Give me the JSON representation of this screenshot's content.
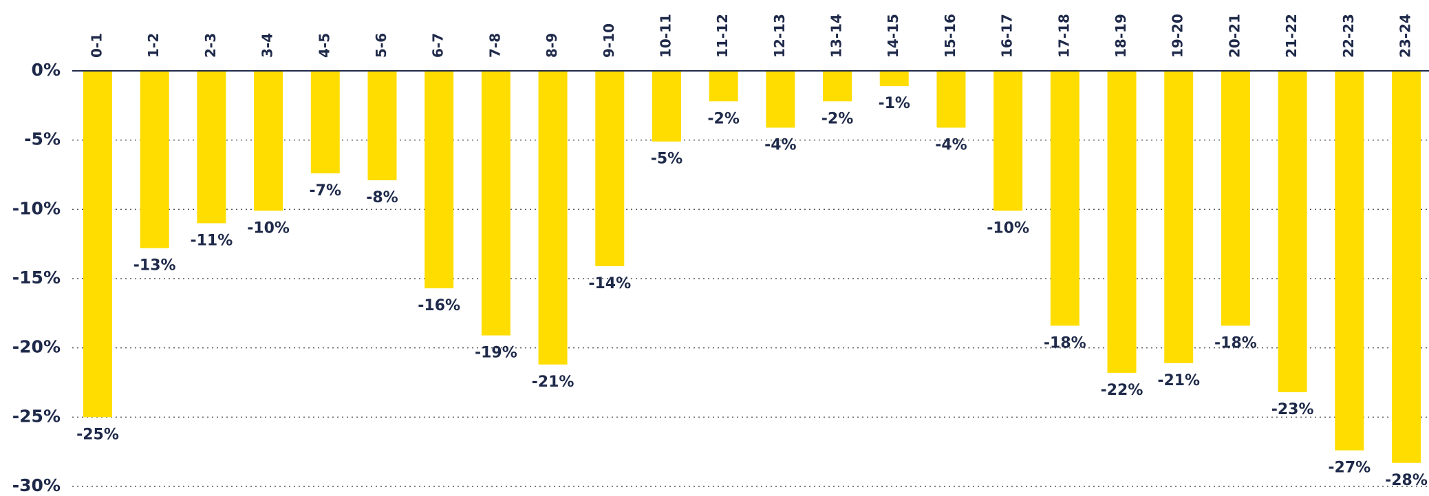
{
  "chart_data": {
    "type": "bar",
    "categories": [
      "0-1",
      "1-2",
      "2-3",
      "3-4",
      "4-5",
      "5-6",
      "6-7",
      "7-8",
      "8-9",
      "9-10",
      "10-11",
      "11-12",
      "12-13",
      "13-14",
      "14-15",
      "15-16",
      "16-17",
      "17-18",
      "18-19",
      "19-20",
      "20-21",
      "21-22",
      "22-23",
      "23-24"
    ],
    "values": [
      -25,
      -12.8,
      -11,
      -10.1,
      -7.4,
      -7.9,
      -15.7,
      -19.1,
      -21.2,
      -14.1,
      -5.1,
      -2.2,
      -4.1,
      -2.2,
      -1.1,
      -4.1,
      -10.1,
      -18.4,
      -21.8,
      -21.1,
      -18.4,
      -23.2,
      -27.4,
      -28.3
    ],
    "value_labels": [
      "-25%",
      "-13%",
      "-11%",
      "-10%",
      "-7%",
      "-8%",
      "-16%",
      "-19%",
      "-21%",
      "-14%",
      "-5%",
      "-2%",
      "-4%",
      "-2%",
      "-1%",
      "-4%",
      "-10%",
      "-18%",
      "-22%",
      "-21%",
      "-18%",
      "-23%",
      "-27%",
      "-28%"
    ],
    "color": "#ffdd00",
    "ylim": [
      -30,
      0
    ],
    "yticks": [
      {
        "value": 0,
        "label": "0%"
      },
      {
        "value": -5,
        "label": "-5%"
      },
      {
        "value": -10,
        "label": "-10%"
      },
      {
        "value": -15,
        "label": "-15%"
      },
      {
        "value": -20,
        "label": "-20%"
      },
      {
        "value": -25,
        "label": "-25%"
      },
      {
        "value": -30,
        "label": "-30%"
      }
    ],
    "grid": true
  }
}
